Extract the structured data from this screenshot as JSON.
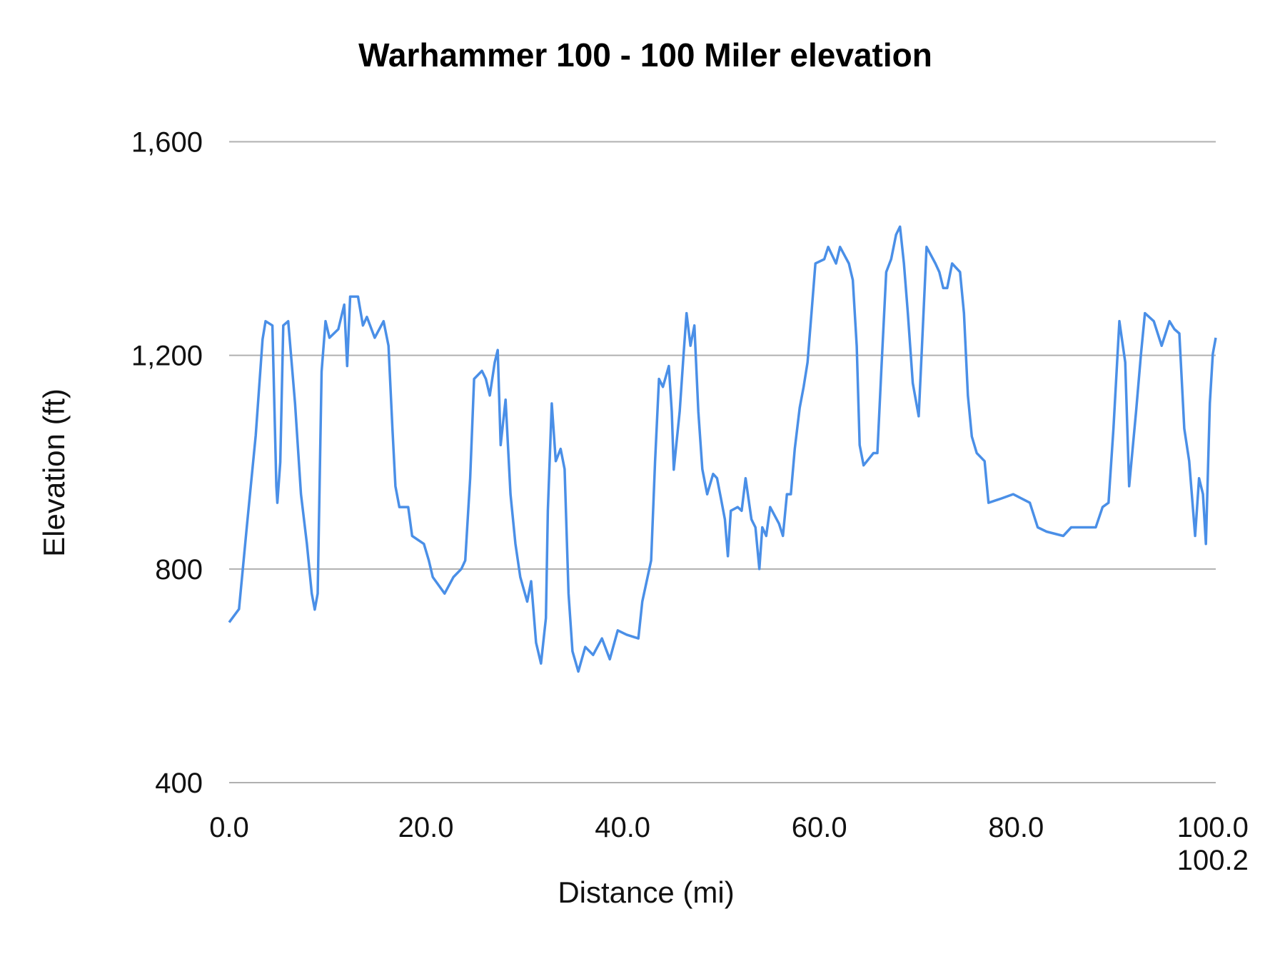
{
  "chart_data": {
    "type": "line",
    "title": "Warhammer 100 - 100 Miler elevation",
    "xlabel": "Distance (mi)",
    "ylabel": "Elevation (ft)",
    "xlim": [
      0,
      100.3
    ],
    "ylim": [
      400,
      1600
    ],
    "xticks": [
      0,
      20,
      40,
      60,
      80,
      100,
      100.2
    ],
    "xtick_labels": [
      "0.0",
      "20.0",
      "40.0",
      "60.0",
      "80.0",
      "100.0",
      "100.2"
    ],
    "yticks": [
      400,
      800,
      1200,
      1600
    ],
    "ytick_labels": [
      "400",
      "800",
      "1,200",
      "1,600"
    ],
    "grid": "horizontal",
    "legend": "none",
    "line_color": "#4a8fe7",
    "grid_color": "#b0b0b0",
    "series": [
      {
        "x": [
          0.0,
          1.0,
          1.8,
          2.7,
          3.4,
          3.7,
          4.4,
          4.8,
          4.9,
          5.2,
          5.5,
          6.0,
          6.7,
          7.3,
          7.9,
          8.4,
          8.7,
          9.0,
          9.4,
          9.8,
          10.2,
          11.1,
          11.7,
          12.0,
          12.3,
          13.1,
          13.6,
          14.0,
          14.8,
          15.7,
          16.2,
          16.6,
          16.9,
          17.3,
          18.2,
          18.6,
          19.8,
          20.3,
          20.7,
          21.9,
          22.8,
          23.6,
          24.0,
          24.5,
          24.9,
          25.7,
          26.1,
          26.5,
          27.0,
          27.3,
          27.6,
          28.1,
          28.6,
          29.1,
          29.6,
          30.3,
          30.7,
          31.2,
          31.7,
          32.2,
          32.4,
          32.8,
          33.2,
          33.7,
          34.1,
          34.5,
          34.9,
          35.5,
          36.2,
          37.0,
          37.9,
          38.7,
          39.5,
          40.4,
          41.6,
          42.0,
          42.9,
          43.3,
          43.7,
          44.1,
          44.7,
          45.0,
          45.2,
          45.8,
          46.2,
          46.5,
          46.9,
          47.3,
          47.7,
          48.1,
          48.6,
          49.2,
          49.6,
          50.0,
          50.4,
          50.7,
          51.0,
          51.7,
          52.1,
          52.5,
          53.1,
          53.5,
          53.9,
          54.2,
          54.6,
          55.0,
          55.9,
          56.3,
          56.7,
          57.1,
          57.5,
          58.0,
          58.4,
          58.8,
          59.2,
          59.6,
          60.5,
          60.9,
          61.7,
          62.1,
          63.0,
          63.4,
          63.8,
          64.1,
          64.5,
          65.5,
          65.9,
          66.3,
          66.8,
          67.3,
          67.8,
          68.2,
          68.6,
          69.0,
          69.5,
          70.1,
          70.4,
          70.9,
          71.8,
          72.2,
          72.6,
          73.0,
          73.5,
          74.3,
          74.7,
          75.1,
          75.5,
          76.0,
          76.8,
          77.2,
          78.5,
          79.7,
          81.4,
          82.2,
          83.1,
          84.8,
          85.6,
          88.1,
          88.8,
          89.4,
          89.9,
          90.5,
          91.1,
          91.5,
          92.2,
          92.7,
          93.1,
          94.0,
          94.8,
          95.6,
          96.1,
          96.6,
          97.1,
          97.6,
          98.2,
          98.6,
          99.0,
          99.3,
          99.7,
          100.0,
          100.3
        ],
        "y": [
          700,
          725,
          880,
          1050,
          1230,
          1264,
          1256,
          955,
          924,
          1000,
          1256,
          1264,
          1110,
          940,
          847,
          754,
          724,
          754,
          1170,
          1264,
          1233,
          1249,
          1295,
          1180,
          1310,
          1310,
          1256,
          1272,
          1233,
          1264,
          1218,
          1063,
          955,
          916,
          916,
          862,
          847,
          816,
          785,
          754,
          785,
          800,
          816,
          970,
          1156,
          1171,
          1156,
          1125,
          1187,
          1210,
          1032,
          1117,
          940,
          847,
          785,
          739,
          777,
          662,
          623,
          708,
          909,
          1110,
          1002,
          1025,
          987,
          754,
          646,
          608,
          654,
          639,
          670,
          631,
          685,
          677,
          670,
          739,
          816,
          1001,
          1156,
          1141,
          1180,
          1095,
          986,
          1095,
          1203,
          1279,
          1218,
          1256,
          1095,
          987,
          940,
          978,
          970,
          932,
          893,
          824,
          909,
          916,
          909,
          970,
          893,
          878,
          800,
          878,
          862,
          916,
          885,
          862,
          940,
          940,
          1025,
          1102,
          1141,
          1187,
          1279,
          1372,
          1380,
          1403,
          1372,
          1403,
          1372,
          1341,
          1217,
          1032,
          994,
          1017,
          1017,
          1171,
          1356,
          1380,
          1426,
          1441,
          1372,
          1279,
          1148,
          1086,
          1203,
          1403,
          1372,
          1356,
          1326,
          1326,
          1372,
          1356,
          1279,
          1125,
          1048,
          1017,
          1002,
          924,
          932,
          940,
          924,
          878,
          870,
          862,
          878,
          878,
          916,
          924,
          1063,
          1264,
          1187,
          955,
          1095,
          1203,
          1279,
          1264,
          1218,
          1264,
          1249,
          1241,
          1063,
          1002,
          862,
          970,
          940,
          847,
          1110,
          1203,
          1233
        ]
      }
    ]
  }
}
